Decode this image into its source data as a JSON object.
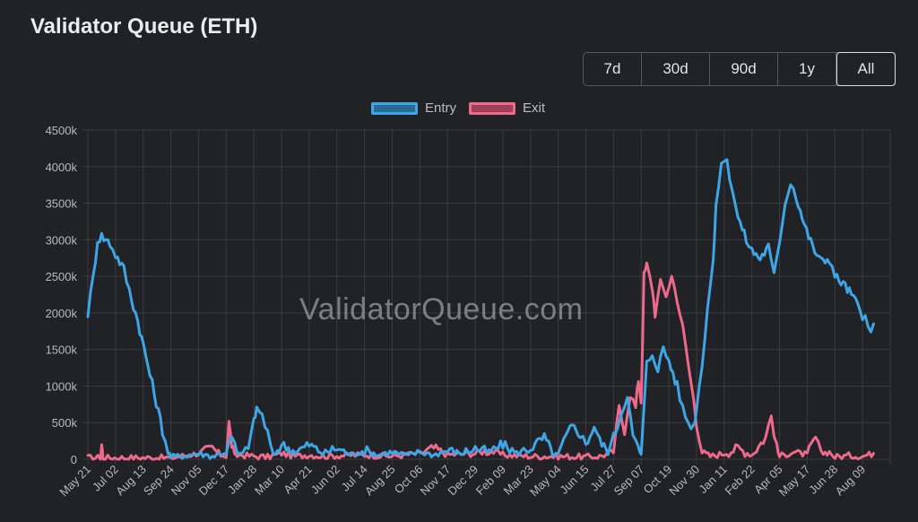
{
  "header": {
    "title": "Validator Queue (ETH)"
  },
  "range_buttons": [
    {
      "label": "7d",
      "active": false
    },
    {
      "label": "30d",
      "active": false
    },
    {
      "label": "90d",
      "active": false
    },
    {
      "label": "1y",
      "active": false
    },
    {
      "label": "All",
      "active": true
    }
  ],
  "watermark": "ValidatorQueue.com",
  "colors": {
    "entry": "#3ea6e6",
    "exit": "#ef6a8a",
    "background": "#212226",
    "grid": "#3a3b40"
  },
  "chart_data": {
    "type": "line",
    "title": "",
    "xlabel": "",
    "ylabel": "",
    "ylim": [
      0,
      4500
    ],
    "y_unit_suffix": "k",
    "y_ticks": [
      "0",
      "500k",
      "1000k",
      "1500k",
      "2000k",
      "2500k",
      "3000k",
      "3500k",
      "4000k",
      "4500k"
    ],
    "x_tick_labels": [
      "May 21",
      "Jul 02",
      "Aug 13",
      "Sep 24",
      "Nov 05",
      "Dec 17",
      "Jan 28",
      "Mar 10",
      "Apr 21",
      "Jun 02",
      "Jul 14",
      "Aug 25",
      "Oct 06",
      "Nov 17",
      "Dec 29",
      "Feb 09",
      "Mar 23",
      "May 04",
      "Jun 15",
      "Jul 27",
      "Sep 07",
      "Oct 19",
      "Nov 30",
      "Jan 11",
      "Feb 22",
      "Apr 05",
      "May 17",
      "Jun 28",
      "Aug 09"
    ],
    "grid": true,
    "legend_position": "top-center",
    "series": [
      {
        "name": "Entry",
        "color": "#3ea6e6",
        "points": [
          [
            0,
            2000
          ],
          [
            0.2,
            2500
          ],
          [
            0.35,
            3000
          ],
          [
            0.5,
            3050
          ],
          [
            0.8,
            2950
          ],
          [
            1.0,
            2800
          ],
          [
            1.3,
            2600
          ],
          [
            1.5,
            2300
          ],
          [
            1.8,
            1900
          ],
          [
            2.1,
            1400
          ],
          [
            2.4,
            900
          ],
          [
            2.7,
            400
          ],
          [
            2.9,
            100
          ],
          [
            3.0,
            30
          ],
          [
            3.5,
            50
          ],
          [
            4.0,
            80
          ],
          [
            4.5,
            40
          ],
          [
            5.0,
            100
          ],
          [
            5.2,
            300
          ],
          [
            5.4,
            80
          ],
          [
            5.6,
            60
          ],
          [
            5.8,
            200
          ],
          [
            6.0,
            500
          ],
          [
            6.1,
            700
          ],
          [
            6.3,
            600
          ],
          [
            6.5,
            350
          ],
          [
            6.7,
            40
          ],
          [
            7.0,
            200
          ],
          [
            7.5,
            100
          ],
          [
            8.0,
            200
          ],
          [
            8.5,
            80
          ],
          [
            9.0,
            150
          ],
          [
            9.5,
            60
          ],
          [
            10.0,
            120
          ],
          [
            10.5,
            60
          ],
          [
            11.0,
            100
          ],
          [
            11.5,
            50
          ],
          [
            12.0,
            100
          ],
          [
            12.5,
            60
          ],
          [
            13.0,
            120
          ],
          [
            13.5,
            80
          ],
          [
            14.0,
            150
          ],
          [
            14.5,
            100
          ],
          [
            15.0,
            200
          ],
          [
            15.5,
            80
          ],
          [
            16.0,
            150
          ],
          [
            16.5,
            300
          ],
          [
            16.8,
            80
          ],
          [
            17.0,
            50
          ],
          [
            17.2,
            250
          ],
          [
            17.5,
            450
          ],
          [
            17.8,
            350
          ],
          [
            18.0,
            200
          ],
          [
            18.3,
            450
          ],
          [
            18.5,
            250
          ],
          [
            18.8,
            100
          ],
          [
            19.0,
            300
          ],
          [
            19.3,
            650
          ],
          [
            19.5,
            900
          ],
          [
            19.7,
            300
          ],
          [
            19.9,
            150
          ],
          [
            20.0,
            50
          ],
          [
            20.2,
            1300
          ],
          [
            20.4,
            1450
          ],
          [
            20.6,
            1250
          ],
          [
            20.8,
            1500
          ],
          [
            21.0,
            1350
          ],
          [
            21.3,
            1000
          ],
          [
            21.5,
            700
          ],
          [
            21.7,
            500
          ],
          [
            21.9,
            450
          ],
          [
            22.0,
            700
          ],
          [
            22.2,
            1300
          ],
          [
            22.4,
            2100
          ],
          [
            22.6,
            2700
          ],
          [
            22.7,
            3400
          ],
          [
            22.9,
            4100
          ],
          [
            23.1,
            4050
          ],
          [
            23.3,
            3700
          ],
          [
            23.5,
            3300
          ],
          [
            23.8,
            3000
          ],
          [
            24.0,
            2850
          ],
          [
            24.3,
            2750
          ],
          [
            24.6,
            2900
          ],
          [
            24.8,
            2500
          ],
          [
            25.0,
            3000
          ],
          [
            25.2,
            3500
          ],
          [
            25.4,
            3800
          ],
          [
            25.6,
            3600
          ],
          [
            25.9,
            3200
          ],
          [
            26.2,
            2900
          ],
          [
            26.5,
            2700
          ],
          [
            26.8,
            2750
          ],
          [
            27.0,
            2500
          ],
          [
            27.3,
            2400
          ],
          [
            27.6,
            2250
          ],
          [
            27.9,
            2050
          ],
          [
            28.1,
            1900
          ],
          [
            28.3,
            1700
          ],
          [
            28.4,
            1850
          ]
        ]
      },
      {
        "name": "Exit",
        "color": "#ef6a8a",
        "points": [
          [
            0,
            20
          ],
          [
            0.45,
            20
          ],
          [
            0.5,
            200
          ],
          [
            0.55,
            20
          ],
          [
            3.0,
            20
          ],
          [
            3.5,
            50
          ],
          [
            4.0,
            80
          ],
          [
            4.5,
            150
          ],
          [
            4.8,
            60
          ],
          [
            5.0,
            50
          ],
          [
            5.1,
            500
          ],
          [
            5.2,
            200
          ],
          [
            5.3,
            40
          ],
          [
            5.5,
            60
          ],
          [
            6.0,
            40
          ],
          [
            6.5,
            30
          ],
          [
            7.0,
            80
          ],
          [
            7.5,
            40
          ],
          [
            8.0,
            60
          ],
          [
            8.5,
            40
          ],
          [
            9.0,
            50
          ],
          [
            10.0,
            60
          ],
          [
            11.0,
            40
          ],
          [
            12.0,
            80
          ],
          [
            12.5,
            150
          ],
          [
            13.0,
            60
          ],
          [
            14.0,
            80
          ],
          [
            14.5,
            120
          ],
          [
            15.0,
            60
          ],
          [
            16.0,
            40
          ],
          [
            17.0,
            40
          ],
          [
            18.0,
            30
          ],
          [
            18.5,
            40
          ],
          [
            19.0,
            100
          ],
          [
            19.2,
            700
          ],
          [
            19.4,
            400
          ],
          [
            19.6,
            900
          ],
          [
            19.8,
            700
          ],
          [
            19.9,
            1100
          ],
          [
            20.0,
            800
          ],
          [
            20.1,
            2500
          ],
          [
            20.2,
            2650
          ],
          [
            20.4,
            2350
          ],
          [
            20.5,
            2000
          ],
          [
            20.7,
            2400
          ],
          [
            20.9,
            2250
          ],
          [
            21.1,
            2500
          ],
          [
            21.3,
            2200
          ],
          [
            21.5,
            1800
          ],
          [
            21.7,
            1300
          ],
          [
            21.9,
            800
          ],
          [
            22.0,
            500
          ],
          [
            22.2,
            100
          ],
          [
            22.5,
            40
          ],
          [
            23.0,
            80
          ],
          [
            23.5,
            150
          ],
          [
            24.0,
            60
          ],
          [
            24.5,
            300
          ],
          [
            24.7,
            600
          ],
          [
            24.9,
            150
          ],
          [
            25.0,
            40
          ],
          [
            25.5,
            100
          ],
          [
            26.0,
            60
          ],
          [
            26.3,
            300
          ],
          [
            26.5,
            80
          ],
          [
            26.8,
            100
          ],
          [
            27.0,
            30
          ],
          [
            27.5,
            50
          ],
          [
            28.0,
            40
          ],
          [
            28.4,
            80
          ]
        ]
      }
    ]
  }
}
